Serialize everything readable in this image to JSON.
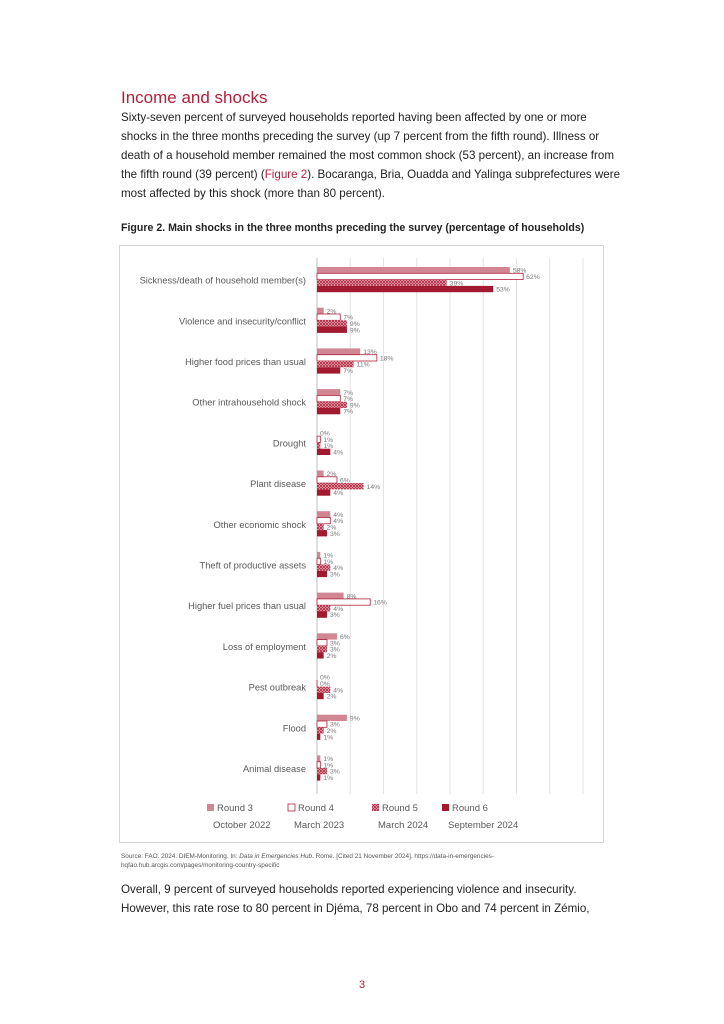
{
  "section_heading": "Income and shocks",
  "paragraph1": {
    "before_ref": "Sixty-seven percent of surveyed households reported having been affected by one or more shocks in the three months preceding the survey (up 7 percent from the fifth round). Illness or death of a household member remained the most common shock (53 percent), an increase from the fifth round (39 percent) (",
    "ref": "Figure 2",
    "after_ref": "). Bocaranga, Bria, Ouadda and Yalinga subprefectures were most affected by this shock (more than 80 percent)."
  },
  "figure_title": "Figure 2. Main shocks in the three months preceding the survey (percentage of households)",
  "source": {
    "prefix": "Source: FAO. 2024. DIEM-Monitoring. In: ",
    "italic": "Data in Emergencies Hub",
    "suffix": ". Rome. [Cited 21 November 2024]. https://data-in-emergencies-hqfao.hub.arcgis.com/pages/monitoring-country-specific"
  },
  "paragraph2": "Overall, 9 percent of surveyed households reported experiencing violence and insecurity. However, this rate rose to 80 percent in Djéma, 78 percent in Obo and 74 percent in Zémio,",
  "page_number": "3",
  "colors": {
    "heading": "#b0203a",
    "round3": "#d18793",
    "round4_border": "#b0203a",
    "round5": "#b8334c",
    "round6": "#a3192f"
  },
  "chart_data": {
    "type": "bar",
    "orientation": "horizontal",
    "title": "Figure 2. Main shocks in the three months preceding the survey (percentage of households)",
    "xlim": [
      0,
      80
    ],
    "grid": true,
    "legend_position": "bottom",
    "categories": [
      "Sickness/death of household member(s)",
      "Violence and insecurity/conflict",
      "Higher food prices than usual",
      "Other intrahousehold shock",
      "Drought",
      "Plant disease",
      "Other economic shock",
      "Theft of productive assets",
      "Higher fuel prices than usual",
      "Loss of employment",
      "Pest outbreak",
      "Flood",
      "Animal disease"
    ],
    "series": [
      {
        "name": "Round 3",
        "period": "October 2022",
        "style": "solid-light",
        "values": [
          58,
          2,
          13,
          7,
          0,
          2,
          4,
          1,
          8,
          6,
          0,
          9,
          1
        ]
      },
      {
        "name": "Round 4",
        "period": "March 2023",
        "style": "outline",
        "values": [
          62,
          7,
          18,
          7,
          1,
          6,
          4,
          1,
          16,
          3,
          0,
          3,
          1
        ]
      },
      {
        "name": "Round 5",
        "period": "March 2024",
        "style": "crosshatch",
        "values": [
          39,
          9,
          11,
          9,
          1,
          14,
          2,
          4,
          4,
          3,
          4,
          2,
          3
        ]
      },
      {
        "name": "Round 6",
        "period": "September 2024",
        "style": "solid-dark",
        "values": [
          53,
          9,
          7,
          7,
          4,
          4,
          3,
          3,
          3,
          2,
          2,
          1,
          1
        ]
      }
    ]
  }
}
